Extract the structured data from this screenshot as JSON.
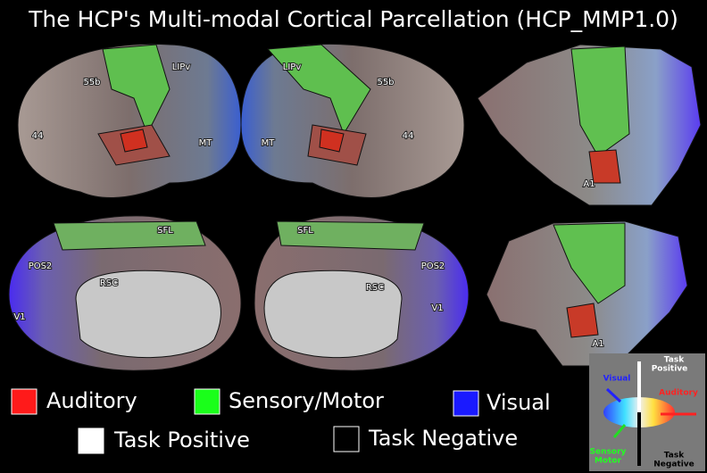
{
  "title": "The HCP's Multi-modal Cortical Parcellation (HCP_MMP1.0)",
  "lateral_left": [
    "55b",
    "LIPv",
    "44",
    "MT"
  ],
  "lateral_right": [
    "LIPv",
    "55b",
    "44",
    "MT"
  ],
  "medial_left": [
    "SFL",
    "POS2",
    "RSC",
    "V1"
  ],
  "medial_right": [
    "SFL",
    "POS2",
    "RSC",
    "V1"
  ],
  "flatmap_top": [
    "A1"
  ],
  "flatmap_bottom": [
    "A1"
  ],
  "legend": [
    {
      "label": "Auditory",
      "color": "#ff1a1a"
    },
    {
      "label": "Sensory/Motor",
      "color": "#1aff1a"
    },
    {
      "label": "Visual",
      "color": "#1a1aff"
    },
    {
      "label": "Task Positive",
      "color": "#ffffff"
    },
    {
      "label": "Task Negative",
      "color": "#000000"
    }
  ],
  "inset": {
    "task_positive": [
      "Task",
      "Positive"
    ],
    "visual": "Visual",
    "auditory": "Auditory",
    "sensory_motor": [
      "Sensory",
      "Motor"
    ],
    "task_negative": [
      "Task",
      "Negative"
    ]
  }
}
